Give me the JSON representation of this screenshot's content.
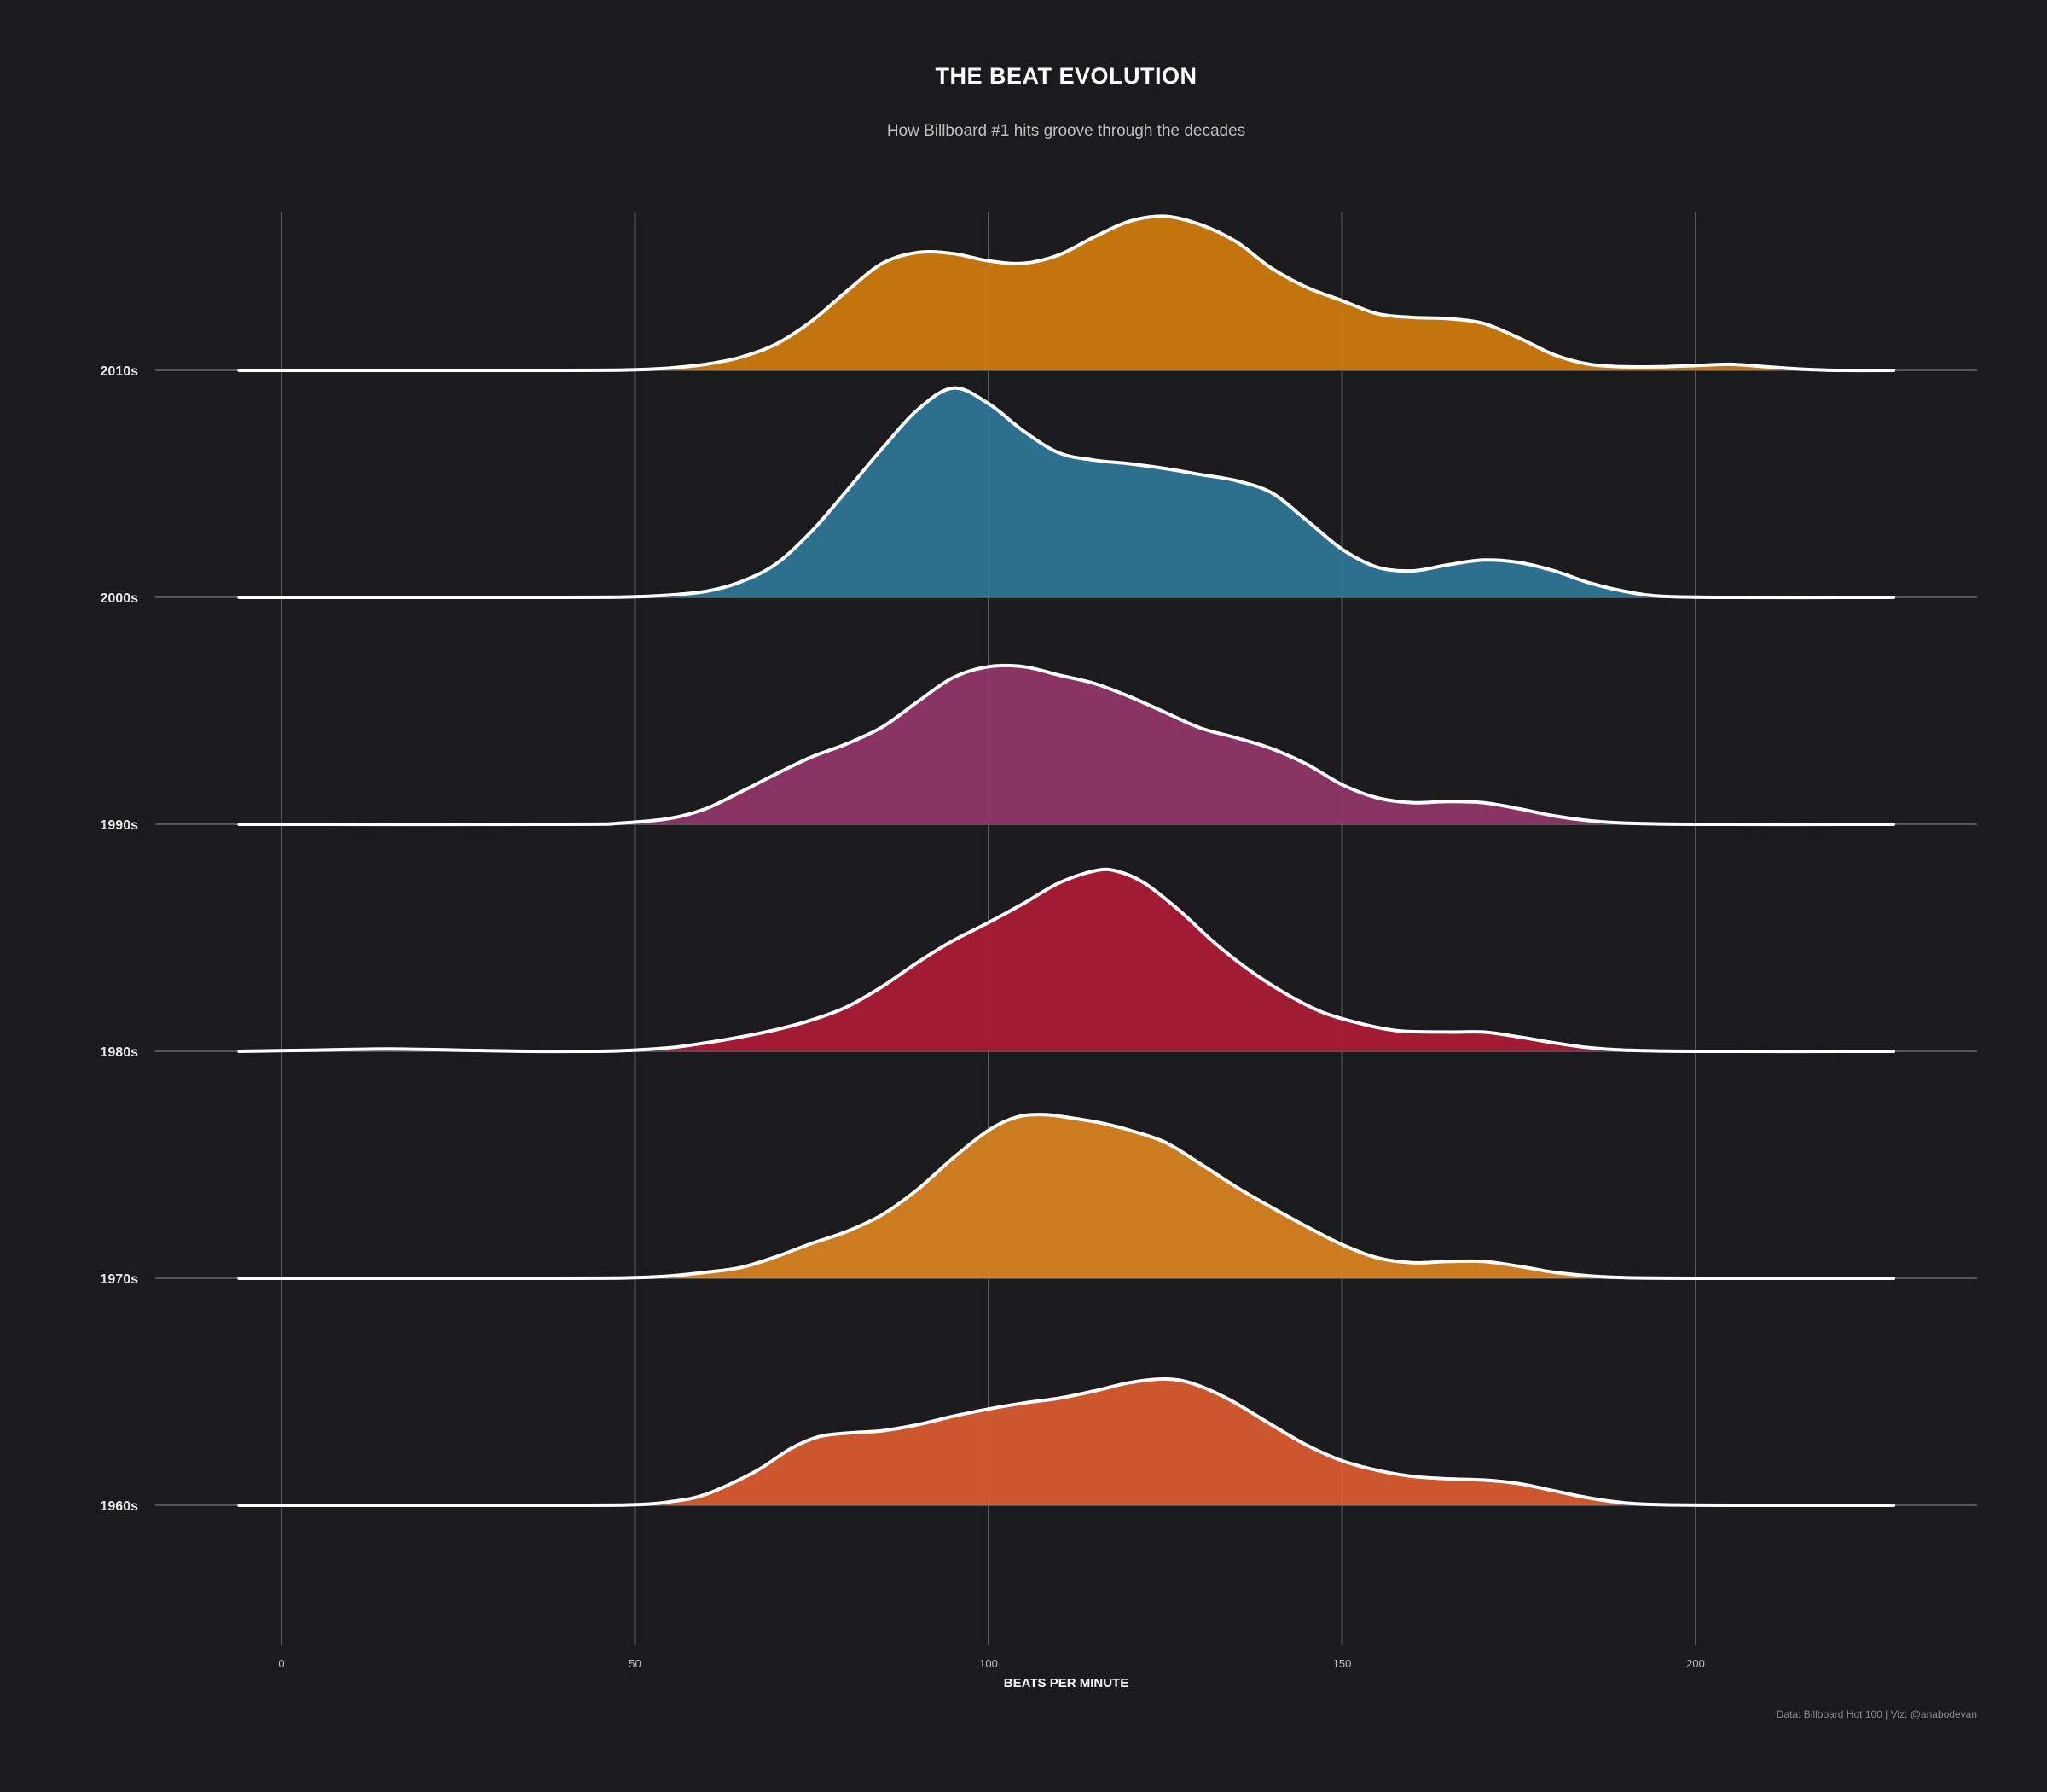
{
  "chart_data": {
    "type": "ridgeline",
    "title": "THE BEAT EVOLUTION",
    "subtitle": "How Billboard #1 hits groove through the decades",
    "xlabel": "BEATS PER MINUTE",
    "caption": "Data: Billboard Hot 100 | Viz: @anabodevan",
    "xlim": [
      -9,
      240
    ],
    "xticks": [
      0,
      50,
      100,
      150,
      200
    ],
    "xtick_labels": [
      "0",
      "50",
      "100",
      "150",
      "200"
    ],
    "x_domain": [
      -6,
      228
    ],
    "grid": "vertical",
    "series": [
      {
        "name": "1960s",
        "color": "#e05e31",
        "points": [
          [
            -6,
            0
          ],
          [
            40,
            0
          ],
          [
            50,
            0.005
          ],
          [
            55,
            0.03
          ],
          [
            60,
            0.09
          ],
          [
            67,
            0.28
          ],
          [
            72,
            0.47
          ],
          [
            76,
            0.57
          ],
          [
            80,
            0.6
          ],
          [
            85,
            0.62
          ],
          [
            90,
            0.67
          ],
          [
            95,
            0.74
          ],
          [
            100,
            0.8
          ],
          [
            105,
            0.85
          ],
          [
            110,
            0.89
          ],
          [
            115,
            0.95
          ],
          [
            120,
            1.02
          ],
          [
            125,
            1.05
          ],
          [
            129,
            1.01
          ],
          [
            134,
            0.88
          ],
          [
            140,
            0.67
          ],
          [
            145,
            0.5
          ],
          [
            150,
            0.37
          ],
          [
            155,
            0.29
          ],
          [
            160,
            0.24
          ],
          [
            165,
            0.22
          ],
          [
            170,
            0.21
          ],
          [
            175,
            0.18
          ],
          [
            180,
            0.12
          ],
          [
            185,
            0.06
          ],
          [
            190,
            0.02
          ],
          [
            195,
            0.005
          ],
          [
            205,
            0
          ],
          [
            228,
            0
          ]
        ]
      },
      {
        "name": "1970s",
        "color": "#df8720",
        "points": [
          [
            -6,
            0
          ],
          [
            40,
            0
          ],
          [
            50,
            0.005
          ],
          [
            55,
            0.02
          ],
          [
            60,
            0.05
          ],
          [
            65,
            0.09
          ],
          [
            70,
            0.18
          ],
          [
            75,
            0.29
          ],
          [
            80,
            0.39
          ],
          [
            85,
            0.53
          ],
          [
            90,
            0.74
          ],
          [
            95,
            1.0
          ],
          [
            100,
            1.23
          ],
          [
            104,
            1.34
          ],
          [
            108,
            1.36
          ],
          [
            112,
            1.33
          ],
          [
            116,
            1.29
          ],
          [
            120,
            1.23
          ],
          [
            125,
            1.13
          ],
          [
            130,
            0.95
          ],
          [
            135,
            0.76
          ],
          [
            140,
            0.59
          ],
          [
            145,
            0.43
          ],
          [
            150,
            0.28
          ],
          [
            155,
            0.17
          ],
          [
            160,
            0.13
          ],
          [
            165,
            0.14
          ],
          [
            170,
            0.14
          ],
          [
            175,
            0.1
          ],
          [
            180,
            0.05
          ],
          [
            185,
            0.02
          ],
          [
            190,
            0.005
          ],
          [
            200,
            0
          ],
          [
            228,
            0
          ]
        ]
      },
      {
        "name": "1980s",
        "color": "#b01c35",
        "points": [
          [
            -6,
            0
          ],
          [
            5,
            0.01
          ],
          [
            15,
            0.02
          ],
          [
            25,
            0.01
          ],
          [
            35,
            0
          ],
          [
            45,
            0
          ],
          [
            50,
            0.01
          ],
          [
            55,
            0.03
          ],
          [
            60,
            0.07
          ],
          [
            65,
            0.12
          ],
          [
            70,
            0.18
          ],
          [
            75,
            0.26
          ],
          [
            80,
            0.37
          ],
          [
            85,
            0.54
          ],
          [
            90,
            0.74
          ],
          [
            95,
            0.92
          ],
          [
            100,
            1.07
          ],
          [
            105,
            1.23
          ],
          [
            110,
            1.4
          ],
          [
            115,
            1.5
          ],
          [
            118,
            1.5
          ],
          [
            122,
            1.4
          ],
          [
            127,
            1.17
          ],
          [
            132,
            0.9
          ],
          [
            137,
            0.67
          ],
          [
            142,
            0.48
          ],
          [
            147,
            0.33
          ],
          [
            152,
            0.24
          ],
          [
            158,
            0.17
          ],
          [
            165,
            0.16
          ],
          [
            170,
            0.16
          ],
          [
            175,
            0.12
          ],
          [
            180,
            0.07
          ],
          [
            185,
            0.03
          ],
          [
            190,
            0.01
          ],
          [
            200,
            0
          ],
          [
            228,
            0
          ]
        ]
      },
      {
        "name": "1990s",
        "color": "#953669",
        "points": [
          [
            -6,
            0
          ],
          [
            40,
            0
          ],
          [
            48,
            0.01
          ],
          [
            55,
            0.05
          ],
          [
            60,
            0.13
          ],
          [
            65,
            0.27
          ],
          [
            70,
            0.42
          ],
          [
            75,
            0.56
          ],
          [
            80,
            0.67
          ],
          [
            85,
            0.81
          ],
          [
            90,
            1.02
          ],
          [
            95,
            1.22
          ],
          [
            100,
            1.31
          ],
          [
            105,
            1.31
          ],
          [
            110,
            1.24
          ],
          [
            115,
            1.17
          ],
          [
            120,
            1.06
          ],
          [
            125,
            0.93
          ],
          [
            130,
            0.8
          ],
          [
            135,
            0.72
          ],
          [
            140,
            0.63
          ],
          [
            145,
            0.5
          ],
          [
            150,
            0.33
          ],
          [
            155,
            0.22
          ],
          [
            160,
            0.18
          ],
          [
            165,
            0.19
          ],
          [
            170,
            0.18
          ],
          [
            175,
            0.13
          ],
          [
            180,
            0.07
          ],
          [
            185,
            0.03
          ],
          [
            190,
            0.01
          ],
          [
            200,
            0
          ],
          [
            228,
            0
          ]
        ]
      },
      {
        "name": "2000s",
        "color": "#2f7a9b",
        "points": [
          [
            -6,
            0
          ],
          [
            40,
            0
          ],
          [
            50,
            0.005
          ],
          [
            55,
            0.02
          ],
          [
            60,
            0.05
          ],
          [
            65,
            0.13
          ],
          [
            70,
            0.28
          ],
          [
            75,
            0.55
          ],
          [
            80,
            0.89
          ],
          [
            85,
            1.24
          ],
          [
            90,
            1.56
          ],
          [
            95,
            1.74
          ],
          [
            100,
            1.61
          ],
          [
            105,
            1.38
          ],
          [
            110,
            1.2
          ],
          [
            115,
            1.14
          ],
          [
            120,
            1.11
          ],
          [
            125,
            1.07
          ],
          [
            130,
            1.02
          ],
          [
            135,
            0.97
          ],
          [
            140,
            0.87
          ],
          [
            145,
            0.64
          ],
          [
            150,
            0.4
          ],
          [
            155,
            0.25
          ],
          [
            160,
            0.22
          ],
          [
            165,
            0.27
          ],
          [
            170,
            0.31
          ],
          [
            175,
            0.29
          ],
          [
            180,
            0.22
          ],
          [
            185,
            0.12
          ],
          [
            190,
            0.05
          ],
          [
            195,
            0.01
          ],
          [
            205,
            0
          ],
          [
            228,
            0
          ]
        ]
      },
      {
        "name": "2010s",
        "color": "#d4800b",
        "points": [
          [
            -6,
            0
          ],
          [
            40,
            0
          ],
          [
            50,
            0.005
          ],
          [
            55,
            0.02
          ],
          [
            60,
            0.05
          ],
          [
            65,
            0.11
          ],
          [
            70,
            0.22
          ],
          [
            75,
            0.41
          ],
          [
            80,
            0.66
          ],
          [
            85,
            0.89
          ],
          [
            90,
            0.98
          ],
          [
            95,
            0.97
          ],
          [
            100,
            0.91
          ],
          [
            105,
            0.89
          ],
          [
            110,
            0.96
          ],
          [
            115,
            1.11
          ],
          [
            120,
            1.24
          ],
          [
            125,
            1.28
          ],
          [
            130,
            1.21
          ],
          [
            135,
            1.07
          ],
          [
            140,
            0.85
          ],
          [
            145,
            0.69
          ],
          [
            150,
            0.58
          ],
          [
            155,
            0.47
          ],
          [
            160,
            0.44
          ],
          [
            165,
            0.43
          ],
          [
            170,
            0.39
          ],
          [
            175,
            0.27
          ],
          [
            180,
            0.13
          ],
          [
            185,
            0.05
          ],
          [
            190,
            0.03
          ],
          [
            195,
            0.03
          ],
          [
            200,
            0.04
          ],
          [
            205,
            0.05
          ],
          [
            210,
            0.03
          ],
          [
            215,
            0.01
          ],
          [
            220,
            0
          ],
          [
            228,
            0
          ]
        ]
      }
    ]
  }
}
